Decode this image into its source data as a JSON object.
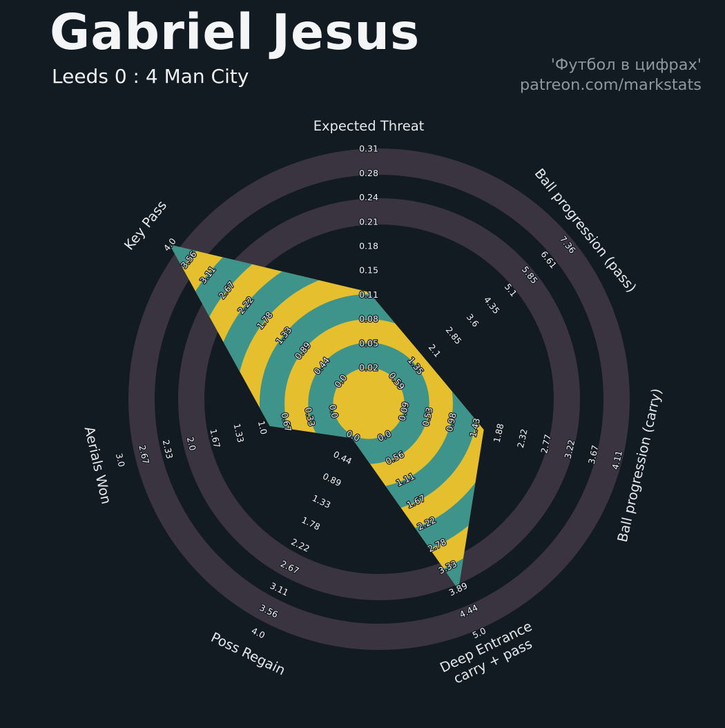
{
  "header": {
    "title": "Gabriel Jesus",
    "subtitle": "Leeds 0 : 4 Man City",
    "watermark_line1": "'Футбол в цифрах'",
    "watermark_line2": "patreon.com/markstats"
  },
  "colors": {
    "background": "#121a22",
    "ring_light": "#3a3440",
    "fill_teal": "#3e948a",
    "fill_yellow": "#e5bf2d",
    "tick_text": "#f2f3f4",
    "axis_title_text": "#e6e9eb",
    "halo": "#10171e"
  },
  "chart_data": {
    "type": "radar",
    "title": "Gabriel Jesus",
    "subtitle": "Leeds 0 : 4 Man City",
    "num_rings": 10,
    "start_angle_deg": 90,
    "direction": "clockwise",
    "grid": "concentric-rings",
    "legend_position": "none",
    "axes": [
      {
        "label": "Expected Threat",
        "title_lines": [
          "Expected Threat"
        ],
        "min": 0.02,
        "max": 0.31,
        "value": 0.12,
        "ticks": [
          "0.02",
          "0.05",
          "0.08",
          "0.11",
          "0.15",
          "0.18",
          "0.21",
          "0.24",
          "0.28",
          "0.31"
        ]
      },
      {
        "label": "Ball progression (pass)",
        "title_lines": [
          "Ball progression (pass)"
        ],
        "min": 0.59,
        "max": 7.36,
        "value": 1.7,
        "ticks": [
          "0.59",
          "1.35",
          "2.1",
          "2.85",
          "3.6",
          "4.35",
          "5.1",
          "5.85",
          "6.61",
          "7.36"
        ]
      },
      {
        "label": "Ball progression (carry)",
        "title_lines": [
          "Ball progression (carry)"
        ],
        "min": 0.09,
        "max": 4.11,
        "value": 1.6,
        "ticks": [
          "0.09",
          "0.53",
          "0.98",
          "1.43",
          "1.88",
          "2.32",
          "2.77",
          "3.22",
          "3.67",
          "4.11"
        ]
      },
      {
        "label": "Deep Entrance carry + pass",
        "title_lines": [
          "Deep Entrance",
          "carry + pass"
        ],
        "min": 0.0,
        "max": 5.0,
        "value": 3.9,
        "ticks": [
          "0.0",
          "0.56",
          "1.11",
          "1.67",
          "2.22",
          "2.78",
          "3.33",
          "3.89",
          "4.44",
          "5.0"
        ]
      },
      {
        "label": "Poss Regain",
        "title_lines": [
          "Poss Regain"
        ],
        "min": 0.0,
        "max": 4.0,
        "value": 0.05,
        "ticks": [
          "0.0",
          "0.44",
          "0.89",
          "1.33",
          "1.78",
          "2.22",
          "2.67",
          "3.11",
          "3.56",
          "4.0"
        ]
      },
      {
        "label": "Aerials Won",
        "title_lines": [
          "Aerials Won"
        ],
        "min": 0.0,
        "max": 3.0,
        "value": 0.9,
        "ticks": [
          "0.0",
          "0.33",
          "0.67",
          "1.0",
          "1.33",
          "1.67",
          "2.0",
          "2.33",
          "2.67",
          "3.0"
        ]
      },
      {
        "label": "Key Pass",
        "title_lines": [
          "Key Pass"
        ],
        "min": 0.0,
        "max": 4.0,
        "value": 4.0,
        "ticks": [
          "0.0",
          "0.44",
          "0.89",
          "1.33",
          "1.78",
          "2.22",
          "2.67",
          "3.11",
          "3.56",
          "4.0"
        ]
      }
    ]
  }
}
